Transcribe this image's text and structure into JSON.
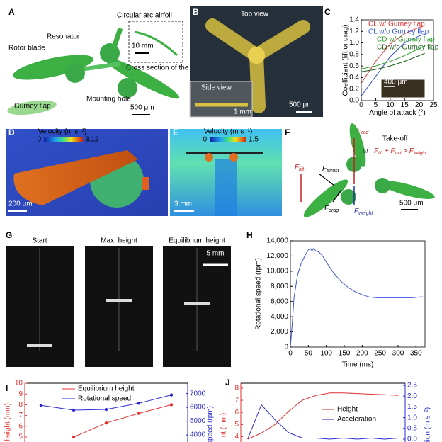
{
  "panels": {
    "A": {
      "label": "A",
      "airfoil_title": "Circular arc airfoil",
      "resonator": "Resonator",
      "rotor_blade": "Rotor blade",
      "inset_scale": "10 mm",
      "inset_caption": "Cross section of the blade",
      "mounting_hole": "Mounting hole",
      "gurney_flap": "Gurney flap",
      "scale": "500 μm"
    },
    "B": {
      "label": "B",
      "top_view": "Top view",
      "side_view": "Side view",
      "inset_scale": "1 mm",
      "scale": "500 μm"
    },
    "D": {
      "label": "D",
      "colorbar_title": "Velocity (m s⁻¹)",
      "colorbar_min": 0,
      "colorbar_max": 3.12,
      "scale": "200 μm"
    },
    "E": {
      "label": "E",
      "colorbar_title": "Velocity (m s⁻¹)",
      "colorbar_min": 0,
      "colorbar_max": 1.5,
      "scale": "3 mm"
    },
    "F": {
      "label": "F",
      "title": "Take-off",
      "omega": "ω",
      "scale": "500 μm",
      "forces": [
        [
          "F",
          "rad"
        ],
        [
          "F",
          "lift"
        ],
        [
          "F",
          "thrust"
        ],
        [
          "F",
          "drag"
        ],
        [
          "F",
          "weight"
        ]
      ],
      "condition": [
        "F",
        "lift",
        " + ",
        "F",
        "rad",
        " > ",
        "F",
        "weight"
      ]
    },
    "G": {
      "label": "G",
      "frames": [
        "Start",
        "Max. height",
        "Equilibrium height"
      ],
      "scale": "5 mm"
    }
  },
  "chart_data": [
    {
      "type": "line",
      "panel_label": "C",
      "xlabel": "Angle of attack (°)",
      "ylabel": "Coefficient (lift or drag)",
      "inset_scale": "400 μm",
      "x": [
        0,
        5,
        10,
        15,
        20,
        22
      ],
      "series": [
        {
          "name": "CL w/ Gurney flap",
          "color": "#e03030",
          "values": [
            0.3,
            0.68,
            0.98,
            1.16,
            1.27,
            1.3
          ]
        },
        {
          "name": "CL w/o Gurney flap",
          "color": "#3050d0",
          "values": [
            0.08,
            0.42,
            0.76,
            1.0,
            1.12,
            1.15
          ]
        },
        {
          "name": "CD w/ Gurney flap",
          "color": "#30a030",
          "values": [
            0.55,
            0.6,
            0.68,
            0.78,
            0.9,
            0.95
          ]
        },
        {
          "name": "CD w/o Gurney flap",
          "color": "#206020",
          "values": [
            0.5,
            0.54,
            0.6,
            0.68,
            0.78,
            0.82
          ]
        }
      ],
      "xlim": [
        0,
        25
      ],
      "ylim": [
        0,
        1.4
      ],
      "xticks": [
        0,
        5,
        10,
        15,
        20,
        25
      ],
      "yticks": [
        {
          "value": 0,
          "label": "0.0"
        },
        0.2,
        0.4,
        0.6,
        0.8,
        {
          "value": 1,
          "label": "1.0"
        },
        1.2,
        1.4
      ]
    },
    {
      "type": "line",
      "panel_label": "H",
      "xlabel": "Time (ms)",
      "ylabel": "Rotational speed (rpm)",
      "x": [
        0,
        5,
        10,
        20,
        30,
        40,
        50,
        55,
        60,
        65,
        70,
        80,
        90,
        100,
        120,
        140,
        160,
        180,
        200,
        220,
        240,
        260,
        280,
        300,
        320,
        340,
        360,
        370
      ],
      "series": [
        {
          "name": "Rotational speed",
          "color": "#3b55d9",
          "values": [
            0,
            3000,
            6500,
            9500,
            11000,
            12000,
            12800,
            13000,
            12700,
            13000,
            12700,
            12500,
            12000,
            11200,
            9800,
            8700,
            7900,
            7300,
            6900,
            6600,
            6500,
            6500,
            6500,
            6500,
            6500,
            6500,
            6600,
            6600
          ]
        }
      ],
      "xlim": [
        0,
        375
      ],
      "ylim": [
        0,
        14000
      ],
      "xticks": [
        0,
        50,
        100,
        150,
        200,
        250,
        300,
        350
      ],
      "yticks": [
        0,
        {
          "value": 2000,
          "label": "2,000"
        },
        {
          "value": 4000,
          "label": "4,000"
        },
        {
          "value": 6000,
          "label": "6,000"
        },
        {
          "value": 8000,
          "label": "8,000"
        },
        {
          "value": 10000,
          "label": "10,000"
        },
        {
          "value": 12000,
          "label": "12,000"
        },
        {
          "value": 14000,
          "label": "14,000"
        }
      ]
    },
    {
      "type": "line",
      "panel_label": "I",
      "ylabel": "n height (mm)",
      "y2label": "speed (rpm)",
      "categories": [
        null,
        null,
        null,
        null,
        null
      ],
      "series": [
        {
          "name": "Equilibrium height",
          "color": "#e03030",
          "values": [
            null,
            5.0,
            6.3,
            7.2,
            8.0
          ]
        },
        {
          "name": "Rotational speed",
          "color": "#2a2ad0",
          "axis": "y2",
          "values": [
            6150,
            5800,
            5850,
            6300,
            6900
          ]
        }
      ],
      "ylim": [
        5,
        10
      ],
      "yticks": [
        5,
        6,
        7,
        8,
        9,
        10
      ],
      "y2lim": [
        3850,
        7750
      ],
      "y2ticks": [
        4000,
        5000,
        6000,
        7000
      ],
      "y_color": "#e03030",
      "y2_color": "#2a2ad0"
    },
    {
      "type": "line",
      "panel_label": "J",
      "ylabel": "nt (mm)",
      "y2label": "tion (m s⁻²)",
      "categories": [
        null,
        null,
        null,
        null,
        null,
        null,
        null,
        null,
        null,
        null,
        null,
        null
      ],
      "series": [
        {
          "name": "Height",
          "color": "#e03030",
          "values": [
            3.8,
            4.3,
            5.0,
            6.1,
            7.0,
            7.4,
            7.6,
            7.6,
            7.55,
            7.5,
            7.45,
            7.4
          ]
        },
        {
          "name": "Acceleration",
          "color": "#2a2ad0",
          "axis": "y2",
          "values": [
            0,
            1.6,
            0.9,
            0.3,
            0.05,
            0.05,
            0,
            0.05,
            0,
            0.05,
            0,
            0.05
          ]
        }
      ],
      "ylim": [
        3.8,
        8.4
      ],
      "yticks": [
        4,
        5,
        6,
        7,
        8
      ],
      "y2lim": [
        0,
        2.6
      ],
      "y2ticks": [
        {
          "value": 0,
          "label": "0.0"
        },
        0.5,
        {
          "value": 1,
          "label": "1.0"
        },
        1.5,
        {
          "value": 2,
          "label": "2.0"
        },
        2.5
      ],
      "y_color": "#e03030",
      "y2_color": "#2a2ad0"
    }
  ]
}
